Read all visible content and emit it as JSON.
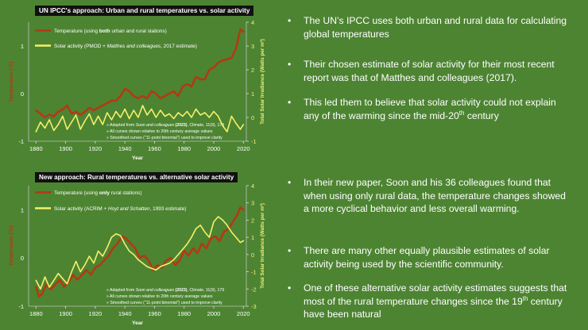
{
  "colors": {
    "background": "#4d8432",
    "temperature": "#b23a13",
    "solar": "#f5f06a",
    "axis_text": "#f2ee7a"
  },
  "chart_data": [
    {
      "type": "line",
      "title": "UN IPCC's approach: Urban and rural temperatures vs. solar activity",
      "xlabel": "Year",
      "ylabel": "Temperature (°C)",
      "y2label": "Total Solar Irradiance (Watts per m²)",
      "xlim": [
        1875,
        2022
      ],
      "ylim": [
        -1,
        1.5
      ],
      "y2lim": [
        -1,
        4
      ],
      "x_ticks": [
        "1880",
        "1900",
        "1920",
        "1940",
        "1960",
        "1980",
        "2000",
        "2020"
      ],
      "y_ticks": [
        "-1",
        "0",
        "1"
      ],
      "y2_ticks": [
        "-1",
        "0",
        "1",
        "2",
        "3",
        "4"
      ],
      "legend": [
        {
          "pre": "Temperature (using ",
          "bold": "both",
          "post": " urban and rural stations)"
        },
        {
          "pre": "Solar activity (PMOD + ",
          "ital": "Matthes and colleagues",
          "post": ", 2017 estimate)"
        }
      ],
      "notes": [
        {
          "pre": "» Adapted from ",
          "ital": "Soon and colleagues",
          "bold": " (2023)",
          "post": ", Climate, 11(9), 179"
        },
        {
          "pre": "» All curves shown relative to 20th century average values"
        },
        {
          "pre": "» Smoothed curves (\"11-point binomial\") used to improve clarity"
        }
      ],
      "series": [
        {
          "name": "Temperature",
          "axis": "left",
          "x": [
            1880,
            1883,
            1886,
            1889,
            1892,
            1895,
            1898,
            1901,
            1904,
            1907,
            1910,
            1913,
            1916,
            1919,
            1922,
            1925,
            1928,
            1931,
            1934,
            1937,
            1940,
            1943,
            1946,
            1949,
            1952,
            1955,
            1958,
            1961,
            1964,
            1967,
            1970,
            1973,
            1976,
            1979,
            1982,
            1985,
            1988,
            1991,
            1994,
            1997,
            2000,
            2003,
            2006,
            2009,
            2012,
            2015,
            2018,
            2020
          ],
          "values": [
            -0.35,
            -0.42,
            -0.5,
            -0.44,
            -0.48,
            -0.38,
            -0.33,
            -0.25,
            -0.42,
            -0.38,
            -0.45,
            -0.38,
            -0.3,
            -0.35,
            -0.3,
            -0.25,
            -0.2,
            -0.15,
            -0.15,
            -0.05,
            0.1,
            0.05,
            -0.05,
            -0.1,
            -0.05,
            -0.1,
            0.05,
            0.0,
            -0.1,
            -0.05,
            0.0,
            0.05,
            -0.05,
            0.15,
            0.2,
            0.15,
            0.35,
            0.3,
            0.3,
            0.5,
            0.55,
            0.65,
            0.7,
            0.72,
            0.75,
            0.95,
            1.35,
            1.3
          ]
        },
        {
          "name": "Solar activity",
          "axis": "right",
          "x": [
            1880,
            1883,
            1886,
            1889,
            1892,
            1895,
            1898,
            1901,
            1904,
            1907,
            1910,
            1913,
            1916,
            1919,
            1922,
            1925,
            1928,
            1931,
            1934,
            1937,
            1940,
            1943,
            1946,
            1949,
            1952,
            1955,
            1958,
            1961,
            1964,
            1967,
            1970,
            1973,
            1976,
            1979,
            1982,
            1985,
            1988,
            1991,
            1994,
            1997,
            2000,
            2003,
            2006,
            2009,
            2012,
            2015,
            2018,
            2020
          ],
          "values": [
            -0.6,
            -0.2,
            -0.45,
            -0.1,
            -0.55,
            -0.3,
            0.05,
            -0.5,
            -0.2,
            0.1,
            -0.5,
            -0.15,
            0.15,
            -0.3,
            0.05,
            -0.3,
            0.2,
            -0.1,
            0.25,
            0.0,
            0.35,
            -0.05,
            0.3,
            0.0,
            0.5,
            0.1,
            0.35,
            0.0,
            0.3,
            0.05,
            0.15,
            -0.05,
            0.2,
            0.05,
            0.25,
            0.0,
            0.35,
            0.1,
            0.2,
            0.0,
            0.25,
            0.05,
            -0.35,
            -0.6,
            0.05,
            -0.25,
            -0.5,
            -0.3
          ]
        }
      ]
    },
    {
      "type": "line",
      "title": "New approach: Rural temperatures vs. alternative solar activity",
      "xlabel": "Year",
      "ylabel": "Temperature (°C)",
      "y2label": "Total Solar Irradiance (Watts per m²)",
      "xlim": [
        1875,
        2022
      ],
      "ylim": [
        -1,
        1.5
      ],
      "y2lim": [
        -3,
        4
      ],
      "x_ticks": [
        "1880",
        "1900",
        "1920",
        "1940",
        "1960",
        "1980",
        "2000",
        "2020"
      ],
      "y_ticks": [
        "-1",
        "0",
        "1"
      ],
      "y2_ticks": [
        "-3",
        "-2",
        "-1",
        "0",
        "1",
        "2",
        "3",
        "4"
      ],
      "legend": [
        {
          "pre": "Temperature (using ",
          "bold": "only",
          "post": " rural stations)"
        },
        {
          "pre": "Solar activity (ACRIM + ",
          "ital": "Hoyt and Schatten",
          "post": ", 1993 estimate)"
        }
      ],
      "notes": [
        {
          "pre": "» Adapted from ",
          "ital": "Soon and colleagues",
          "bold": " (2023)",
          "post": ", Climate, 11(9), 179"
        },
        {
          "pre": "» All curves shown relative to 20th century average values"
        },
        {
          "pre": "» Smoothed curves (\"11-point binomial\") used to improve clarity"
        }
      ],
      "series": [
        {
          "name": "Temperature",
          "axis": "left",
          "x": [
            1880,
            1882,
            1884,
            1887,
            1890,
            1893,
            1896,
            1899,
            1902,
            1905,
            1908,
            1911,
            1914,
            1917,
            1920,
            1923,
            1926,
            1929,
            1932,
            1935,
            1938,
            1941,
            1944,
            1947,
            1950,
            1953,
            1956,
            1959,
            1962,
            1965,
            1968,
            1971,
            1974,
            1977,
            1980,
            1983,
            1986,
            1989,
            1992,
            1995,
            1998,
            2001,
            2004,
            2007,
            2010,
            2013,
            2016,
            2018,
            2020
          ],
          "values": [
            -0.6,
            -0.8,
            -0.75,
            -0.55,
            -0.65,
            -0.55,
            -0.45,
            -0.6,
            -0.5,
            -0.35,
            -0.45,
            -0.35,
            -0.25,
            -0.35,
            -0.2,
            -0.15,
            -0.05,
            0.05,
            0.2,
            0.3,
            0.45,
            0.4,
            0.3,
            0.2,
            0.0,
            0.05,
            -0.05,
            -0.25,
            -0.15,
            -0.2,
            -0.05,
            0.0,
            -0.15,
            -0.05,
            0.15,
            0.05,
            0.2,
            0.1,
            0.3,
            0.2,
            0.4,
            0.45,
            0.35,
            0.55,
            0.6,
            0.75,
            0.9,
            1.05,
            1.0
          ]
        },
        {
          "name": "Solar activity",
          "axis": "right",
          "x": [
            1880,
            1883,
            1886,
            1889,
            1892,
            1895,
            1898,
            1901,
            1904,
            1907,
            1910,
            1913,
            1916,
            1919,
            1922,
            1925,
            1928,
            1931,
            1934,
            1937,
            1940,
            1943,
            1946,
            1949,
            1952,
            1955,
            1958,
            1961,
            1964,
            1967,
            1970,
            1973,
            1976,
            1979,
            1982,
            1985,
            1988,
            1991,
            1994,
            1997,
            2000,
            2003,
            2006,
            2009,
            2012,
            2015,
            2018,
            2020
          ],
          "values": [
            -1.5,
            -2.0,
            -1.3,
            -1.9,
            -1.5,
            -1.1,
            -1.4,
            -1.7,
            -1.0,
            -0.4,
            -1.0,
            -0.6,
            -0.1,
            -0.5,
            0.2,
            -0.1,
            0.4,
            1.0,
            1.2,
            1.1,
            0.6,
            0.2,
            0.0,
            -0.3,
            -0.5,
            -0.7,
            -0.8,
            -0.9,
            -0.7,
            -0.6,
            -0.5,
            -0.3,
            0.0,
            0.3,
            0.6,
            1.0,
            1.5,
            1.7,
            1.3,
            1.0,
            1.9,
            2.2,
            2.0,
            1.7,
            1.3,
            1.0,
            0.7,
            0.8
          ]
        }
      ]
    }
  ],
  "bullets": [
    {
      "text": "The UN’s IPCC uses both urban and rural data for calculating global temperatures"
    },
    {
      "text": "Their chosen estimate of solar activity for their most recent report was that of Matthes and colleagues (2017)."
    },
    {
      "text": "This led them to believe that solar activity could not explain any of the warming since the mid-20",
      "sup": "th",
      "post": " century"
    },
    {
      "text": "In their new paper, Soon and his 36 colleagues found that when using only rural data, the temperature changes showed a more cyclical behavior and less overall warming."
    },
    {
      "text": "There are many other equally plausible estimates of solar activity being used by the scientific community."
    },
    {
      "text": "One of these alternative solar activity estimates suggests that most of the rural temperature changes since the 19",
      "sup": "th",
      "post": " century have been natural"
    }
  ]
}
